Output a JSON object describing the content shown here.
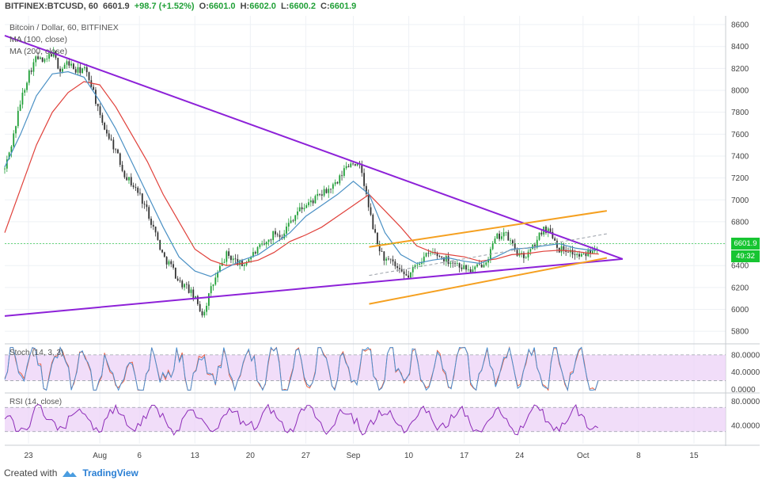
{
  "header": {
    "symbol": "BITFINEX:BTCUSD, 60",
    "last": "6601.9",
    "change": "+98.7 (+1.52%)",
    "o_label": "O:",
    "o_val": "6601.0",
    "h_label": "H:",
    "h_val": "6602.0",
    "l_label": "L:",
    "l_val": "6600.2",
    "c_label": "C:",
    "c_val": "6601.9"
  },
  "legend": {
    "title": "Bitcoin / Dollar, 60, BITFINEX",
    "ma100": "MA (100, close)",
    "ma200": "MA (200, close)"
  },
  "price_tags": {
    "price": "6601.9",
    "timer": "49:32"
  },
  "footer": {
    "created_with": "Created with",
    "brand": "TradingView"
  },
  "colors": {
    "up": "#21a038",
    "down": "#333333",
    "ma100": "#4a90c4",
    "ma200": "#e0403a",
    "triangle": "#8d21d8",
    "channel": "#f5a020",
    "panel_fill": "#ecd2f7",
    "price_tag": "#17c532"
  },
  "chart_data": [
    {
      "type": "line",
      "title": "Bitcoin / Dollar, 60, BITFINEX",
      "y_ticks": [
        5800,
        6000,
        6200,
        6400,
        6600,
        6800,
        7000,
        7200,
        7400,
        7600,
        7800,
        8000,
        8200,
        8400,
        8600
      ],
      "ylim": [
        5700,
        8680
      ],
      "x_ticks": [
        "23",
        "Aug",
        "6",
        "13",
        "20",
        "27",
        "Sep",
        "10",
        "17",
        "24",
        "Oct",
        "8",
        "15"
      ],
      "x_tick_days": [
        0,
        9,
        14,
        21,
        28,
        35,
        41,
        48,
        55,
        62,
        70,
        77,
        84
      ],
      "xlim_days": [
        -3,
        88
      ],
      "series": [
        {
          "name": "BTCUSD",
          "points_day_price": [
            [
              -3,
              7280
            ],
            [
              -2,
              7550
            ],
            [
              -1,
              7900
            ],
            [
              0,
              8150
            ],
            [
              1,
              8300
            ],
            [
              2,
              8250
            ],
            [
              3,
              8350
            ],
            [
              4,
              8180
            ],
            [
              5,
              8260
            ],
            [
              6,
              8170
            ],
            [
              7,
              8200
            ],
            [
              8,
              8050
            ],
            [
              9,
              7750
            ],
            [
              10,
              7600
            ],
            [
              11,
              7450
            ],
            [
              12,
              7250
            ],
            [
              13,
              7150
            ],
            [
              14,
              7050
            ],
            [
              15,
              6900
            ],
            [
              16,
              6700
            ],
            [
              17,
              6480
            ],
            [
              18,
              6400
            ],
            [
              19,
              6250
            ],
            [
              20,
              6200
            ],
            [
              21,
              6100
            ],
            [
              22,
              5950
            ],
            [
              23,
              6180
            ],
            [
              24,
              6350
            ],
            [
              25,
              6500
            ],
            [
              26,
              6450
            ],
            [
              27,
              6400
            ],
            [
              28,
              6480
            ],
            [
              29,
              6550
            ],
            [
              30,
              6600
            ],
            [
              31,
              6700
            ],
            [
              32,
              6680
            ],
            [
              33,
              6800
            ],
            [
              34,
              6900
            ],
            [
              35,
              6950
            ],
            [
              36,
              7000
            ],
            [
              37,
              7050
            ],
            [
              38,
              7100
            ],
            [
              39,
              7150
            ],
            [
              40,
              7300
            ],
            [
              41,
              7350
            ],
            [
              42,
              7280
            ],
            [
              43,
              6900
            ],
            [
              44,
              6600
            ],
            [
              45,
              6450
            ],
            [
              46,
              6420
            ],
            [
              47,
              6320
            ],
            [
              48,
              6300
            ],
            [
              49,
              6420
            ],
            [
              50,
              6480
            ],
            [
              51,
              6520
            ],
            [
              52,
              6480
            ],
            [
              53,
              6450
            ],
            [
              54,
              6420
            ],
            [
              55,
              6380
            ],
            [
              56,
              6350
            ],
            [
              57,
              6400
            ],
            [
              58,
              6480
            ],
            [
              59,
              6650
            ],
            [
              60,
              6700
            ],
            [
              61,
              6600
            ],
            [
              62,
              6480
            ],
            [
              63,
              6500
            ],
            [
              64,
              6600
            ],
            [
              65,
              6750
            ],
            [
              66,
              6700
            ],
            [
              67,
              6550
            ],
            [
              68,
              6550
            ],
            [
              69,
              6500
            ],
            [
              70,
              6480
            ],
            [
              71,
              6550
            ],
            [
              72,
              6601.9
            ]
          ]
        },
        {
          "name": "MA (100, close)",
          "points_day_price": [
            [
              -3,
              7300
            ],
            [
              -1,
              7600
            ],
            [
              1,
              7950
            ],
            [
              3,
              8150
            ],
            [
              5,
              8170
            ],
            [
              7,
              8120
            ],
            [
              9,
              7900
            ],
            [
              11,
              7650
            ],
            [
              13,
              7350
            ],
            [
              15,
              7050
            ],
            [
              17,
              6750
            ],
            [
              19,
              6480
            ],
            [
              21,
              6350
            ],
            [
              23,
              6300
            ],
            [
              25,
              6380
            ],
            [
              27,
              6450
            ],
            [
              29,
              6500
            ],
            [
              31,
              6600
            ],
            [
              33,
              6700
            ],
            [
              35,
              6850
            ],
            [
              37,
              6950
            ],
            [
              39,
              7050
            ],
            [
              41,
              7170
            ],
            [
              43,
              7050
            ],
            [
              45,
              6700
            ],
            [
              47,
              6500
            ],
            [
              49,
              6420
            ],
            [
              51,
              6450
            ],
            [
              53,
              6470
            ],
            [
              55,
              6440
            ],
            [
              57,
              6420
            ],
            [
              59,
              6480
            ],
            [
              61,
              6550
            ],
            [
              63,
              6560
            ],
            [
              65,
              6580
            ],
            [
              67,
              6600
            ],
            [
              69,
              6560
            ],
            [
              71,
              6540
            ],
            [
              72,
              6545
            ]
          ]
        },
        {
          "name": "MA (200, close)",
          "points_day_price": [
            [
              -3,
              6700
            ],
            [
              -1,
              7100
            ],
            [
              1,
              7500
            ],
            [
              3,
              7800
            ],
            [
              5,
              7980
            ],
            [
              7,
              8080
            ],
            [
              9,
              8050
            ],
            [
              11,
              7850
            ],
            [
              13,
              7600
            ],
            [
              15,
              7350
            ],
            [
              17,
              7050
            ],
            [
              19,
              6800
            ],
            [
              21,
              6550
            ],
            [
              23,
              6450
            ],
            [
              25,
              6400
            ],
            [
              27,
              6420
            ],
            [
              29,
              6450
            ],
            [
              31,
              6520
            ],
            [
              33,
              6620
            ],
            [
              35,
              6680
            ],
            [
              37,
              6750
            ],
            [
              39,
              6850
            ],
            [
              41,
              6950
            ],
            [
              43,
              7050
            ],
            [
              45,
              6900
            ],
            [
              47,
              6750
            ],
            [
              49,
              6580
            ],
            [
              51,
              6520
            ],
            [
              53,
              6500
            ],
            [
              55,
              6480
            ],
            [
              57,
              6440
            ],
            [
              59,
              6460
            ],
            [
              61,
              6500
            ],
            [
              63,
              6510
            ],
            [
              65,
              6530
            ],
            [
              67,
              6540
            ],
            [
              69,
              6530
            ],
            [
              71,
              6510
            ],
            [
              72,
              6505
            ]
          ]
        }
      ],
      "trendlines": [
        {
          "name": "triangle-upper",
          "from": [
            -3,
            8500
          ],
          "to": [
            75,
            6460
          ]
        },
        {
          "name": "triangle-lower",
          "from": [
            -3,
            5940
          ],
          "to": [
            75,
            6460
          ]
        },
        {
          "name": "channel-upper",
          "from": [
            43,
            6570
          ],
          "to": [
            73,
            6900
          ]
        },
        {
          "name": "channel-lower",
          "from": [
            43,
            6050
          ],
          "to": [
            73,
            6470
          ]
        },
        {
          "name": "channel-mid",
          "from": [
            43,
            6310
          ],
          "to": [
            73,
            6690
          ]
        }
      ]
    },
    {
      "type": "line",
      "title": "Stoch (14, 3, 3)",
      "y_ticks": [
        "80.0000",
        "40.0000",
        "0.0000"
      ],
      "ylim": [
        -5,
        100
      ],
      "band": [
        20,
        80
      ]
    },
    {
      "type": "line",
      "title": "RSI (14, close)",
      "y_ticks": [
        "80.0000",
        "40.0000"
      ],
      "ylim": [
        10,
        90
      ],
      "band": [
        30,
        70
      ]
    }
  ]
}
